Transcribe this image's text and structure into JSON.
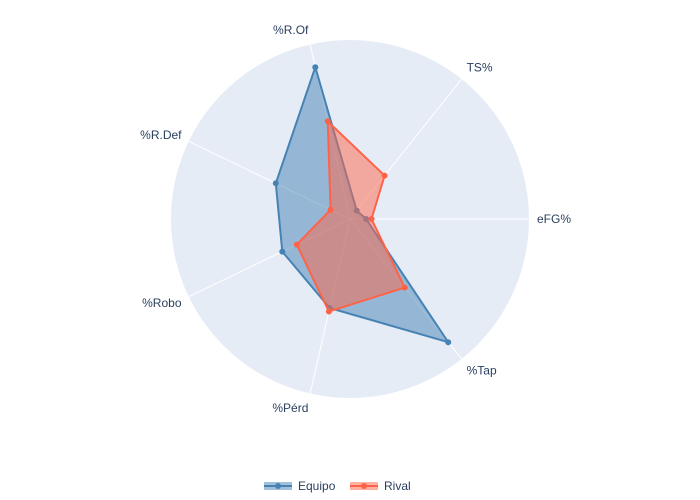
{
  "chart_data": {
    "type": "radar",
    "categories": [
      "eFG%",
      "TS%",
      "%R.Of",
      "%R.Def",
      "%Robo",
      "%Pérd",
      "%Tap"
    ],
    "series": [
      {
        "name": "Equipo",
        "values": [
          0.09,
          0.06,
          0.87,
          0.46,
          0.42,
          0.51,
          0.88
        ],
        "color": "#4682b4"
      },
      {
        "name": "Rival",
        "values": [
          0.12,
          0.31,
          0.56,
          0.12,
          0.33,
          0.53,
          0.49
        ],
        "color": "#ff6347"
      }
    ],
    "range": [
      0,
      1
    ],
    "grid": true,
    "legend_position": "bottom-center"
  }
}
